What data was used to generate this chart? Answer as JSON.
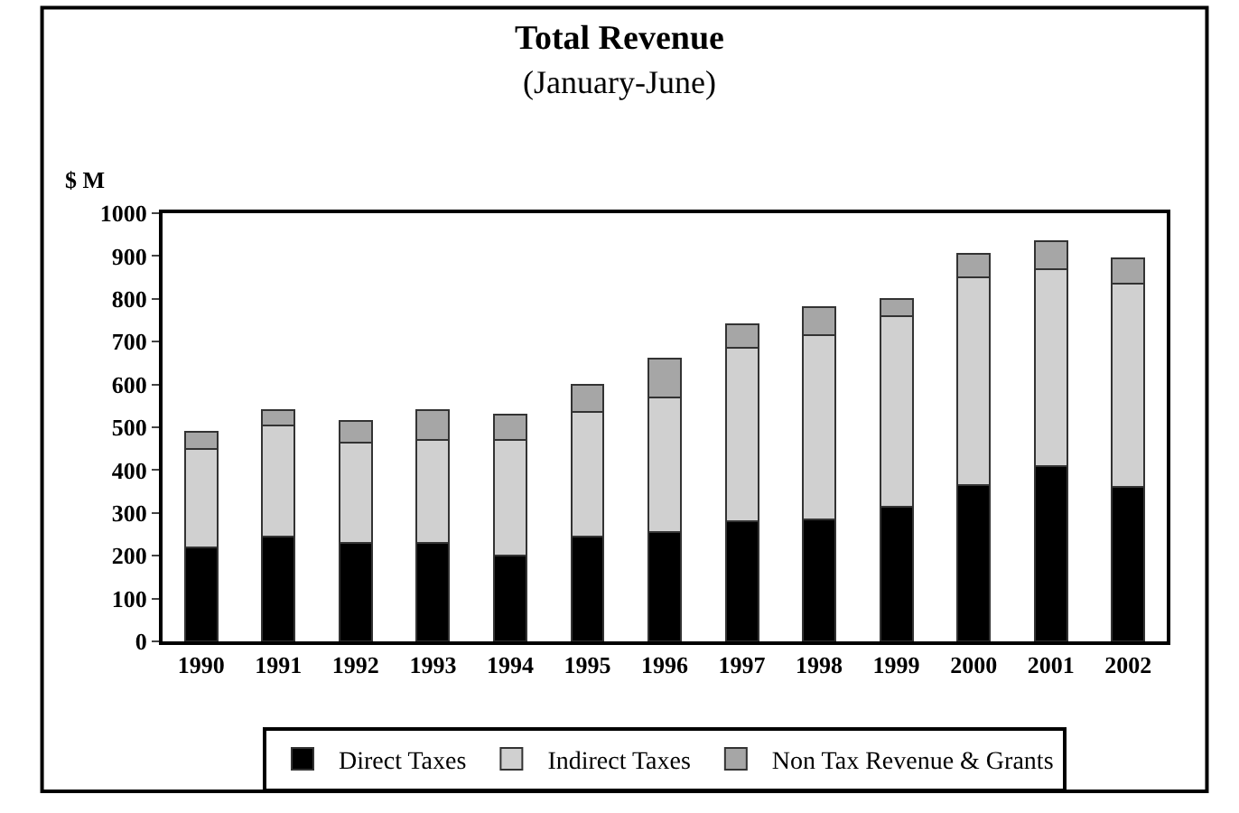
{
  "chart_data": {
    "type": "bar",
    "title": "Total Revenue",
    "subtitle": "(January-June)",
    "ylabel": "$ M",
    "categories": [
      "1990",
      "1991",
      "1992",
      "1993",
      "1994",
      "1995",
      "1996",
      "1997",
      "1998",
      "1999",
      "2000",
      "2001",
      "2002"
    ],
    "stacked": true,
    "series": [
      {
        "name": "Direct Taxes",
        "color": "#000000",
        "values": [
          220,
          245,
          230,
          230,
          200,
          245,
          255,
          280,
          285,
          315,
          365,
          410,
          360
        ]
      },
      {
        "name": "Indirect Taxes",
        "color": "#d0d0d0",
        "values": [
          230,
          260,
          235,
          240,
          270,
          290,
          315,
          405,
          430,
          445,
          485,
          460,
          475
        ]
      },
      {
        "name": "Non Tax Revenue & Grants",
        "color": "#a6a6a6",
        "values": [
          40,
          35,
          50,
          70,
          60,
          65,
          90,
          55,
          65,
          40,
          55,
          65,
          60
        ]
      }
    ],
    "ylim": [
      0,
      1000
    ],
    "yticks": [
      0,
      100,
      200,
      300,
      400,
      500,
      600,
      700,
      800,
      900,
      1000
    ],
    "grid": false,
    "legend": "bottom"
  }
}
